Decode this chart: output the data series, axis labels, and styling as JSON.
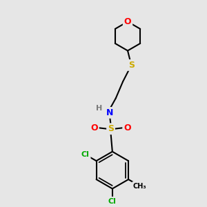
{
  "bg_color": "#e6e6e6",
  "atom_colors": {
    "C": "#000000",
    "H": "#7a7a7a",
    "N": "#0000ff",
    "O": "#ff0000",
    "S": "#ccaa00",
    "Cl": "#00aa00"
  },
  "bond_color": "#000000",
  "bond_width": 1.5,
  "font_size_atom": 9,
  "font_size_small": 8,
  "figsize": [
    3.0,
    3.0
  ],
  "dpi": 100
}
